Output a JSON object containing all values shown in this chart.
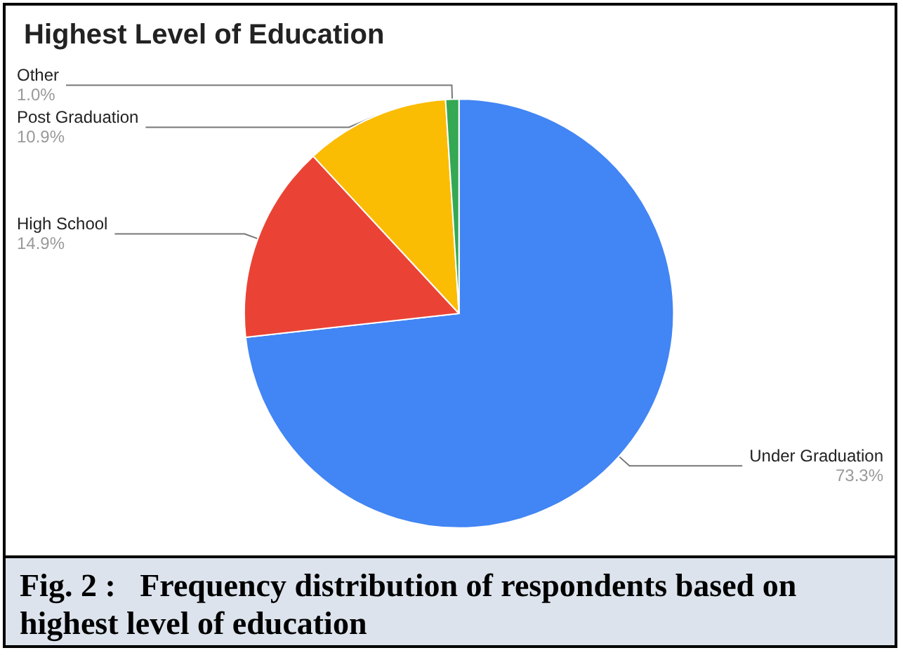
{
  "chart_data": {
    "type": "pie",
    "title": "Highest Level of Education",
    "categories": [
      "Under Graduation",
      "High School",
      "Post Graduation",
      "Other"
    ],
    "values": [
      73.3,
      14.9,
      10.9,
      1.0
    ],
    "value_labels": [
      "73.3%",
      "14.9%",
      "10.9%",
      "1.0%"
    ],
    "colors": [
      "#4285f4",
      "#ea4335",
      "#fbbc04",
      "#34a853"
    ],
    "legend": false,
    "annotations": [
      "Fig. 2 :   Frequency distribution of respondents based on highest level of education"
    ]
  }
}
